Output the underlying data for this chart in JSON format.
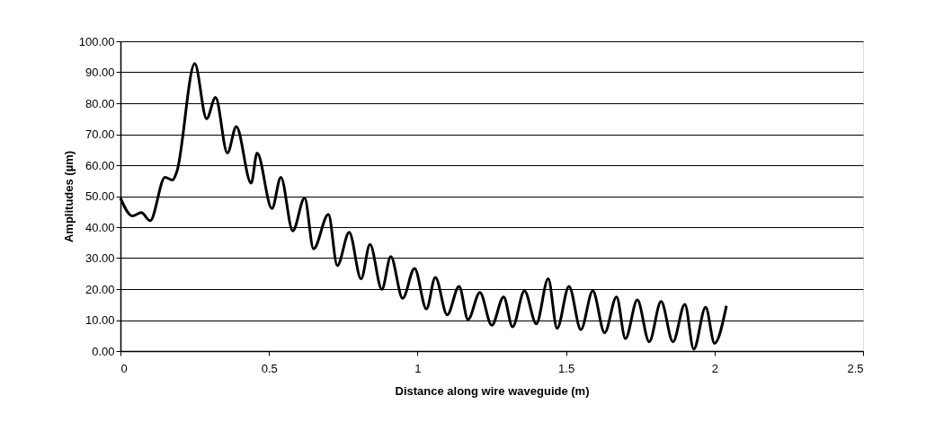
{
  "chart_data": {
    "type": "line",
    "xlabel": "Distance along wire waveguide (m)",
    "ylabel": "Amplitudes (µm)",
    "xlim": [
      0,
      2.5
    ],
    "xticks": [
      0,
      0.5,
      1,
      1.5,
      2,
      2.5
    ],
    "ylim": [
      0,
      100
    ],
    "yticks": [
      {
        "value": 0,
        "label": "0.00"
      },
      {
        "value": 10,
        "label": "10.00"
      },
      {
        "value": 20,
        "label": "20.00"
      },
      {
        "value": 30,
        "label": "30.00"
      },
      {
        "value": 40,
        "label": "40.00"
      },
      {
        "value": 50,
        "label": "50.00"
      },
      {
        "value": 60,
        "label": "60.00"
      },
      {
        "value": 70,
        "label": "70.00"
      },
      {
        "value": 80,
        "label": "80.00"
      },
      {
        "value": 90,
        "label": "90.00"
      },
      {
        "value": 100,
        "label": "100.00"
      }
    ],
    "grid": "y",
    "marker": "none",
    "line_style": "solid",
    "series": [
      {
        "color": "#000000",
        "x": [
          0,
          0.04,
          0.07,
          0.1,
          0.15,
          0.175,
          0.19,
          0.25,
          0.29,
          0.32,
          0.36,
          0.39,
          0.44,
          0.46,
          0.51,
          0.54,
          0.58,
          0.62,
          0.65,
          0.7,
          0.73,
          0.77,
          0.81,
          0.84,
          0.88,
          0.91,
          0.95,
          0.99,
          1.03,
          1.06,
          1.1,
          1.14,
          1.17,
          1.21,
          1.25,
          1.29,
          1.32,
          1.36,
          1.4,
          1.44,
          1.47,
          1.51,
          1.55,
          1.59,
          1.63,
          1.67,
          1.7,
          1.74,
          1.78,
          1.82,
          1.86,
          1.9,
          1.93,
          1.97,
          2.0,
          2.04
        ],
        "values": [
          49.4,
          43.6,
          44.7,
          42.1,
          56.1,
          55.2,
          58,
          92.8,
          75,
          81.9,
          63.9,
          72.5,
          54.2,
          63.9,
          46,
          56.1,
          38.8,
          49.4,
          33,
          44.1,
          27.6,
          38.3,
          23.3,
          34.4,
          19.9,
          30.5,
          17,
          26.7,
          13.6,
          23.8,
          11.7,
          20.9,
          10.2,
          18.9,
          8.3,
          17.5,
          7.8,
          19.4,
          8.8,
          23.3,
          7.3,
          20.9,
          6.9,
          19.4,
          5.9,
          17.5,
          4,
          16.5,
          3,
          16,
          3,
          15.1,
          0.6,
          14.1,
          2.5,
          14.6
        ]
      }
    ]
  }
}
